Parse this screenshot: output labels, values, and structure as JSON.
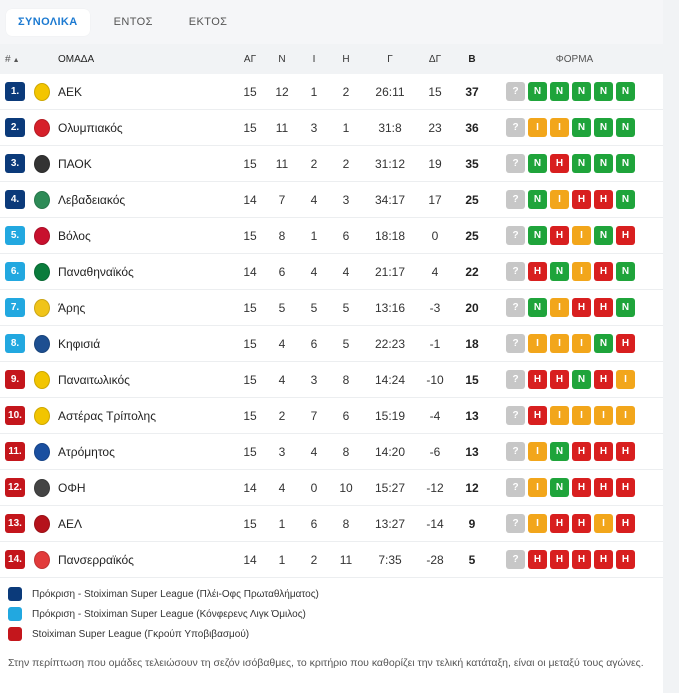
{
  "tabs": [
    {
      "label": "ΣΥΝΟΛΙΚΑ",
      "active": true
    },
    {
      "label": "ΕΝΤΟΣ",
      "active": false
    },
    {
      "label": "ΕΚΤΟΣ",
      "active": false
    }
  ],
  "columns": {
    "rank": "#",
    "team": "ΟΜΑΔΑ",
    "played": "ΑΓ",
    "won": "Ν",
    "drawn": "Ι",
    "lost": "Η",
    "goals": "Γ",
    "goal_diff": "ΔΓ",
    "points": "Β",
    "form": "ΦΟΡΜΑ"
  },
  "colors": {
    "ucl_playoff": "#0b3a7a",
    "conference": "#22a8e0",
    "relegation": "#c4161c",
    "win": "#1fa43b",
    "draw": "#f2a61b",
    "loss": "#d81f1f",
    "upcoming": "#c7c7c7"
  },
  "form_labels": {
    "W": "Ν",
    "D": "Ι",
    "L": "Η",
    "U": "?"
  },
  "rows": [
    {
      "rank": "1.",
      "team": "ΑΕΚ",
      "played": "15",
      "won": "12",
      "drawn": "1",
      "lost": "2",
      "goals": "26:11",
      "goal_diff": "15",
      "points": "37",
      "zone": "ucl_playoff",
      "crest": {
        "color": "#f3c500",
        "icon": "eagle-crest"
      },
      "form": [
        "U",
        "W",
        "W",
        "W",
        "W",
        "W"
      ]
    },
    {
      "rank": "2.",
      "team": "Ολυμπιακός",
      "played": "15",
      "won": "11",
      "drawn": "3",
      "lost": "1",
      "goals": "31:8",
      "goal_diff": "23",
      "points": "36",
      "zone": "ucl_playoff",
      "crest": {
        "color": "#d6202a",
        "icon": "laurel-crest"
      },
      "form": [
        "U",
        "D",
        "D",
        "W",
        "W",
        "W"
      ]
    },
    {
      "rank": "3.",
      "team": "ΠΑΟΚ",
      "played": "15",
      "won": "11",
      "drawn": "2",
      "lost": "2",
      "goals": "31:12",
      "goal_diff": "19",
      "points": "35",
      "zone": "ucl_playoff",
      "crest": {
        "color": "#333333",
        "icon": "shield-crest"
      },
      "form": [
        "U",
        "W",
        "L",
        "W",
        "W",
        "W"
      ]
    },
    {
      "rank": "4.",
      "team": "Λεβαδειακός",
      "played": "14",
      "won": "7",
      "drawn": "4",
      "lost": "3",
      "goals": "34:17",
      "goal_diff": "17",
      "points": "25",
      "zone": "ucl_playoff",
      "crest": {
        "color": "#2e8b57",
        "icon": "stripe-crest"
      },
      "form": [
        "U",
        "W",
        "D",
        "L",
        "L",
        "W"
      ]
    },
    {
      "rank": "5.",
      "team": "Βόλος",
      "played": "15",
      "won": "8",
      "drawn": "1",
      "lost": "6",
      "goals": "18:18",
      "goal_diff": "0",
      "points": "25",
      "zone": "conference",
      "crest": {
        "color": "#c8102e",
        "icon": "castle-crest"
      },
      "form": [
        "U",
        "W",
        "L",
        "D",
        "W",
        "L"
      ]
    },
    {
      "rank": "6.",
      "team": "Παναθηναϊκός",
      "played": "14",
      "won": "6",
      "drawn": "4",
      "lost": "4",
      "goals": "21:17",
      "goal_diff": "4",
      "points": "22",
      "zone": "conference",
      "crest": {
        "color": "#0a7c3c",
        "icon": "clover-crest"
      },
      "form": [
        "U",
        "L",
        "W",
        "D",
        "L",
        "W"
      ]
    },
    {
      "rank": "7.",
      "team": "Άρης",
      "played": "15",
      "won": "5",
      "drawn": "5",
      "lost": "5",
      "goals": "13:16",
      "goal_diff": "-3",
      "points": "20",
      "zone": "conference",
      "crest": {
        "color": "#f0c419",
        "icon": "warrior-crest"
      },
      "form": [
        "U",
        "W",
        "D",
        "L",
        "L",
        "W"
      ]
    },
    {
      "rank": "8.",
      "team": "Κηφισιά",
      "played": "15",
      "won": "4",
      "drawn": "6",
      "lost": "5",
      "goals": "22:23",
      "goal_diff": "-1",
      "points": "18",
      "zone": "conference",
      "crest": {
        "color": "#1d4f91",
        "icon": "shield-crest"
      },
      "form": [
        "U",
        "D",
        "D",
        "D",
        "W",
        "L"
      ]
    },
    {
      "rank": "9.",
      "team": "Παναιτωλικός",
      "played": "15",
      "won": "4",
      "drawn": "3",
      "lost": "8",
      "goals": "14:24",
      "goal_diff": "-10",
      "points": "15",
      "zone": "relegation",
      "crest": {
        "color": "#f2c500",
        "icon": "shield-crest"
      },
      "form": [
        "U",
        "L",
        "L",
        "W",
        "L",
        "D"
      ]
    },
    {
      "rank": "10.",
      "team": "Αστέρας Τρίπολης",
      "played": "15",
      "won": "2",
      "drawn": "7",
      "lost": "6",
      "goals": "15:19",
      "goal_diff": "-4",
      "points": "13",
      "zone": "relegation",
      "crest": {
        "color": "#f2c500",
        "icon": "star-crest"
      },
      "form": [
        "U",
        "L",
        "D",
        "D",
        "D",
        "D"
      ]
    },
    {
      "rank": "11.",
      "team": "Ατρόμητος",
      "played": "15",
      "won": "3",
      "drawn": "4",
      "lost": "8",
      "goals": "14:20",
      "goal_diff": "-6",
      "points": "13",
      "zone": "relegation",
      "crest": {
        "color": "#1a4fa0",
        "icon": "star-crest"
      },
      "form": [
        "U",
        "D",
        "W",
        "L",
        "L",
        "L"
      ]
    },
    {
      "rank": "12.",
      "team": "ΟΦΗ",
      "played": "14",
      "won": "4",
      "drawn": "0",
      "lost": "10",
      "goals": "15:27",
      "goal_diff": "-12",
      "points": "12",
      "zone": "relegation",
      "crest": {
        "color": "#444444",
        "icon": "round-crest"
      },
      "form": [
        "U",
        "D",
        "W",
        "L",
        "L",
        "L"
      ]
    },
    {
      "rank": "13.",
      "team": "ΑΕΛ",
      "played": "15",
      "won": "1",
      "drawn": "6",
      "lost": "8",
      "goals": "13:27",
      "goal_diff": "-14",
      "points": "9",
      "zone": "relegation",
      "crest": {
        "color": "#b5121b",
        "icon": "horse-crest"
      },
      "form": [
        "U",
        "D",
        "L",
        "L",
        "D",
        "L"
      ]
    },
    {
      "rank": "14.",
      "team": "Πανσερραϊκός",
      "played": "14",
      "won": "1",
      "drawn": "2",
      "lost": "11",
      "goals": "7:35",
      "goal_diff": "-28",
      "points": "5",
      "zone": "relegation",
      "crest": {
        "color": "#e23b3b",
        "icon": "lion-crest"
      },
      "form": [
        "U",
        "L",
        "L",
        "L",
        "L",
        "L"
      ]
    }
  ],
  "legend": [
    {
      "zone": "ucl_playoff",
      "label": "Πρόκριση - Stoiximan Super League (Πλέι-Οφς Πρωταθλήματος)"
    },
    {
      "zone": "conference",
      "label": "Πρόκριση - Stoiximan Super League (Κόνφερενς Λιγκ Όμιλος)"
    },
    {
      "zone": "relegation",
      "label": "Stoiximan Super League (Γκρούπ Υποβιβασμού)"
    }
  ],
  "note": "Στην περίπτωση που ομάδες τελειώσουν τη σεζόν ισόβαθμες, το κριτήριο που καθορίζει την τελική κατάταξη, είναι οι μεταξύ τους αγώνες."
}
